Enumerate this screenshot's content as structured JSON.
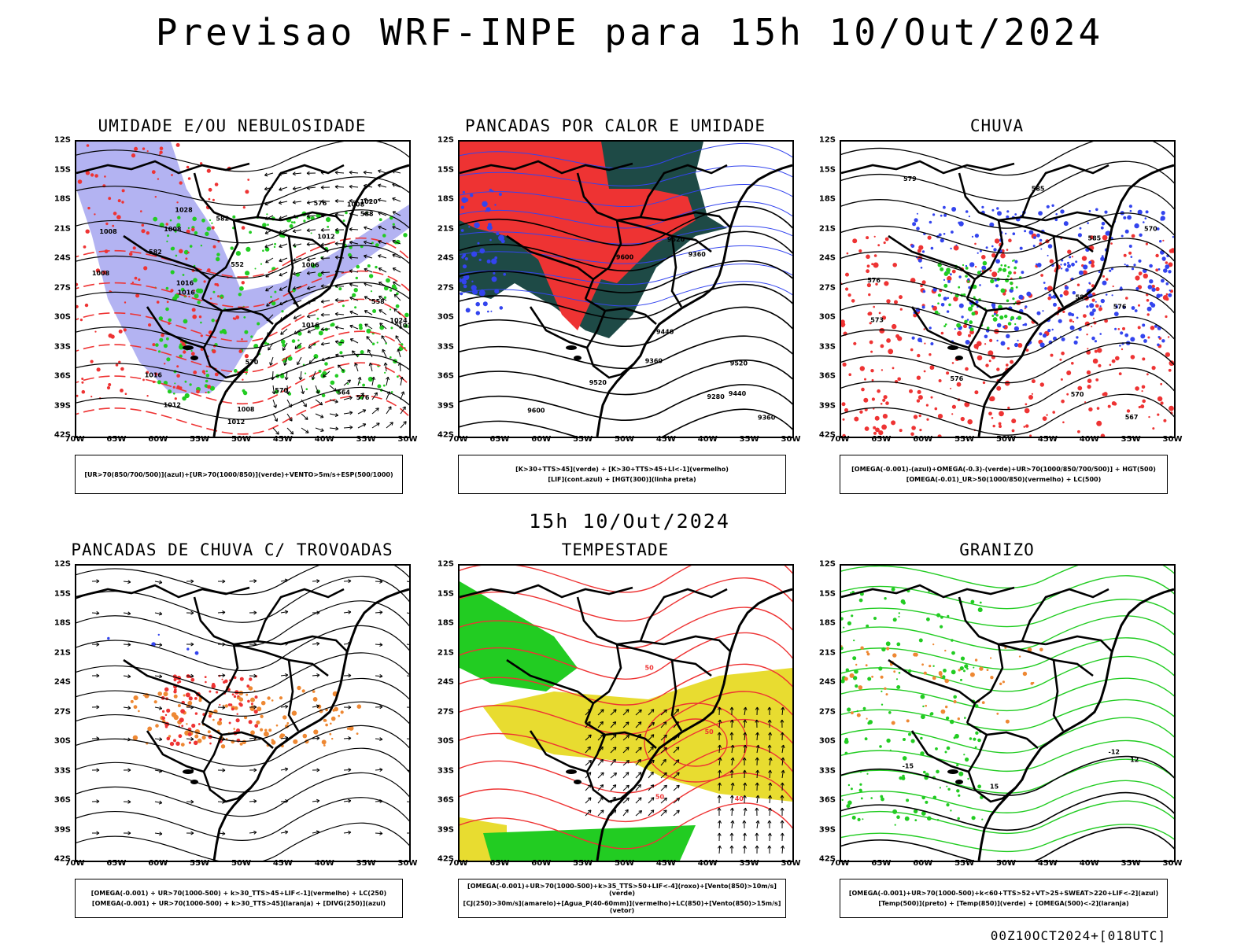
{
  "main_title": "Previsao WRF-INPE  para 15h 10/Out/2024",
  "mid_title": "15h 10/Out/2024",
  "footer_stamp": "00Z10OCT2024+[018UTC]",
  "lat_ticks": [
    "12S",
    "15S",
    "18S",
    "21S",
    "24S",
    "27S",
    "30S",
    "33S",
    "36S",
    "39S",
    "42S"
  ],
  "lon_ticks": [
    "70W",
    "65W",
    "60W",
    "55W",
    "50W",
    "45W",
    "40W",
    "35W",
    "30W"
  ],
  "colors": {
    "blue_shade": "#9999ee",
    "red": "#ee3333",
    "green": "#22cc22",
    "dark_teal": "#1e4a46",
    "blue": "#3344ee",
    "orange": "#ee8833",
    "yellow": "#e8dc30"
  },
  "panels": [
    {
      "id": "umidade",
      "title": "UMIDADE E/OU NEBULOSIDADE",
      "legend": [
        "[UR>70(850/700/500)](azul)+[UR>70(1000/850)](verde)+VENTO>5m/s+ESP(500/1000)"
      ],
      "labels": [
        "1008",
        "1008",
        "1006",
        "1008",
        "1008",
        "1012",
        "1016",
        "1016",
        "1020",
        "1012",
        "1024",
        "1028",
        "1012",
        "1016",
        "1008",
        "1012",
        "1016",
        "582",
        "576",
        "570",
        "564",
        "558",
        "552",
        "570",
        "576",
        "582",
        "588"
      ]
    },
    {
      "id": "pancadas-calor",
      "title": "PANCADAS POR CALOR E UMIDADE",
      "legend": [
        "[K>30+TTS>45](verde) + [K>30+TTS>45+LI<-1](vermelho)",
        "[LIF](cont.azul) + [HGT(300)](linha preta)"
      ],
      "labels": [
        "9600",
        "9520",
        "9440",
        "9360",
        "9600",
        "9520",
        "9440",
        "9360",
        "9280",
        "9520",
        "9360"
      ]
    },
    {
      "id": "chuva",
      "title": "CHUVA",
      "legend": [
        "[OMEGA(-0.001)-(azul)+OMEGA(-0.3)-(verde)+UR>70(1000/850/700/500)] + HGT(500)",
        "[OMEGA(-0.01)_UR>50(1000/850)(vermelho) + LC(500)"
      ],
      "labels": [
        "585",
        "585",
        "585",
        "576",
        "576",
        "570",
        "573",
        "567",
        "576",
        "579",
        "570"
      ]
    },
    {
      "id": "pancadas-trovoadas",
      "title": "PANCADAS DE CHUVA C/ TROVOADAS",
      "legend": [
        "[OMEGA(-0.001) + UR>70(1000-500) + k>30_TTS>45+LIF<-1](vermelho) + LC(250)",
        "[OMEGA(-0.001) + UR>70(1000-500) + k>30_TTS>45](laranja) + [DIVG(250)](azul)"
      ],
      "labels": []
    },
    {
      "id": "tempestade",
      "title": "TEMPESTADE",
      "legend": [
        "[OMEGA(-0.001)+UR>70(1000-500)+k>35_TTS>50+LIF<-4](roxo)+[Vento(850)>10m/s](verde)",
        "[CJ(250)>30m/s](amarelo)+[Agua_P(40-60mm)](vermelho)+LC(850)+[Vento(850)>15m/s](vetor)"
      ],
      "labels": [
        "50",
        "40",
        "50",
        "50"
      ]
    },
    {
      "id": "granizo",
      "title": "GRANIZO",
      "legend": [
        "[OMEGA(-0.001)+UR>70(1000-500)+k<60+TTS>52+VT>25+SWEAT>220+LIF<-2](azul)",
        "[Temp(500)](preto) + [Temp(850)](verde) + [OMEGA(500)<-2](laranja)"
      ],
      "labels": [
        "12",
        "15",
        "-15",
        "-12"
      ]
    }
  ]
}
